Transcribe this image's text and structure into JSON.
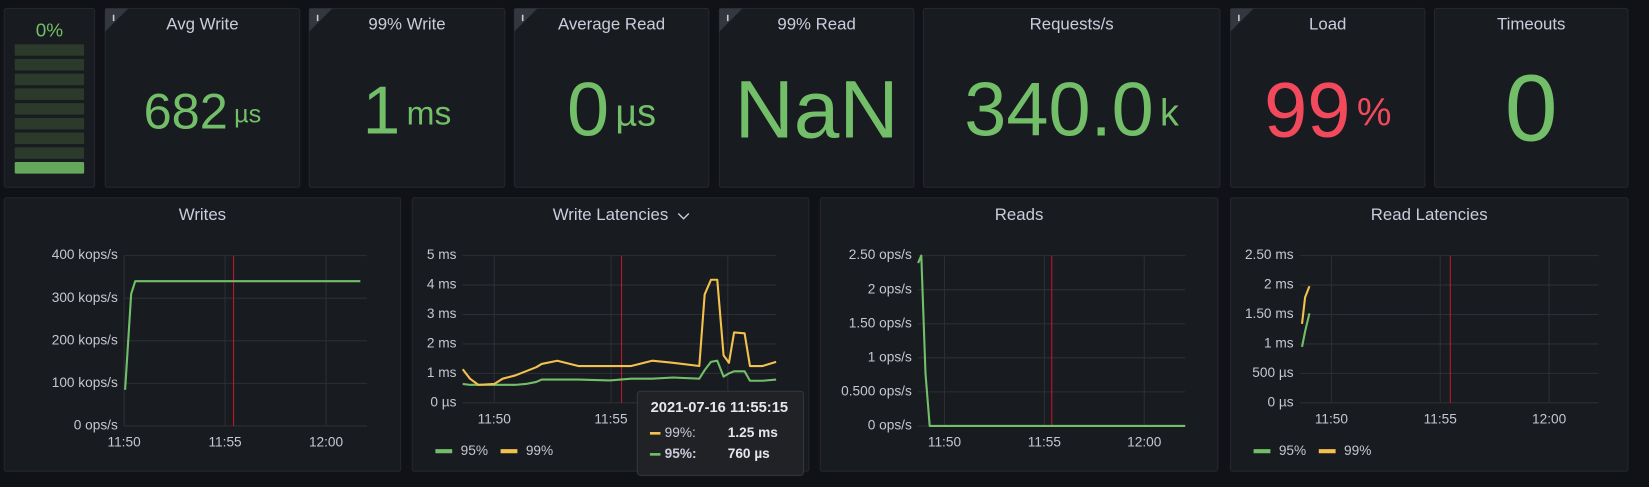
{
  "gauge": {
    "value": "0%"
  },
  "stats": [
    {
      "title": "Avg Write",
      "value": "682",
      "unit": "µs",
      "color": "#73bf69"
    },
    {
      "title": "99% Write",
      "value": "1",
      "unit": "ms",
      "color": "#73bf69"
    },
    {
      "title": "Average Read",
      "value": "0",
      "unit": "µs",
      "color": "#73bf69"
    },
    {
      "title": "99% Read",
      "value": "NaN",
      "color": "#73bf69"
    },
    {
      "title": "Requests/s",
      "value": "340.0",
      "unit": "k",
      "color": "#73bf69"
    },
    {
      "title": "Load",
      "value": "99",
      "unit": "%",
      "color": "#f2495c"
    },
    {
      "title": "Timeouts",
      "value": "0",
      "color": "#73bf69"
    }
  ],
  "chart_data": [
    {
      "type": "line",
      "title": "Writes",
      "x": [
        710.05,
        710.35,
        710.55,
        721.7
      ],
      "series": [
        {
          "color": "#73bf69",
          "values": [
            85000,
            310000,
            340000,
            340000
          ]
        }
      ],
      "xlim": [
        710,
        722.03
      ],
      "xticks": [
        {
          "value": 710,
          "label": "11:50"
        },
        {
          "value": 715,
          "label": "11:55"
        },
        {
          "value": 720,
          "label": "12:00"
        }
      ],
      "ylim": [
        0,
        400000
      ],
      "yticks": [
        {
          "value": 0,
          "label": "0 ops/s"
        },
        {
          "value": 100000,
          "label": "100 kops/s"
        },
        {
          "value": 200000,
          "label": "200 kops/s"
        },
        {
          "value": 300000,
          "label": "300 kops/s"
        },
        {
          "value": 400000,
          "label": "400 kops/s"
        }
      ],
      "marker_x": 715.42,
      "marker_color": "#c4162a",
      "grid": true,
      "legend": false
    },
    {
      "type": "line",
      "title": "Write Latencies",
      "x": [
        708.65,
        708.96,
        709.32,
        710,
        710.36,
        710.9,
        711.35,
        711.8,
        712.03,
        712.7,
        713.6,
        714.95,
        715.86,
        716.76,
        717.66,
        718.78,
        719.01,
        719.28,
        719.55,
        719.82,
        720.05,
        720.27,
        720.72,
        720.95,
        721.49,
        722.07
      ],
      "series": [
        {
          "name": "95%",
          "color": "#73bf69",
          "values": [
            0.64,
            0.61,
            0.61,
            0.61,
            0.61,
            0.61,
            0.64,
            0.71,
            0.79,
            0.79,
            0.79,
            0.76,
            0.82,
            0.82,
            0.86,
            0.82,
            1.11,
            1.39,
            1.43,
            0.89,
            1.0,
            1.07,
            1.07,
            0.75,
            0.75,
            0.79
          ]
        },
        {
          "name": "99%",
          "color": "#f2c14e",
          "values": [
            1.14,
            0.82,
            0.61,
            0.64,
            0.82,
            0.93,
            1.07,
            1.21,
            1.32,
            1.43,
            1.25,
            1.25,
            1.25,
            1.43,
            1.36,
            1.25,
            3.68,
            4.18,
            4.18,
            1.61,
            1.36,
            2.39,
            2.36,
            1.25,
            1.25,
            1.39
          ]
        }
      ],
      "xlim": [
        708.65,
        722.07
      ],
      "xticks": [
        {
          "value": 710,
          "label": "11:50"
        },
        {
          "value": 715,
          "label": "11:55"
        },
        {
          "value": 720,
          "label": "12:00"
        }
      ],
      "ylim": [
        0,
        5
      ],
      "yticks": [
        {
          "value": 0,
          "label": "0 µs"
        },
        {
          "value": 1,
          "label": "1 ms"
        },
        {
          "value": 2,
          "label": "2 ms"
        },
        {
          "value": 3,
          "label": "3 ms"
        },
        {
          "value": 4,
          "label": "4 ms"
        },
        {
          "value": 5,
          "label": "5 ms"
        }
      ],
      "marker_x": 715.45,
      "marker_color": "#c4162a",
      "grid": true,
      "legend": true
    },
    {
      "type": "line",
      "title": "Reads",
      "x": [
        708.68,
        708.84,
        709.05,
        709.26,
        722.05
      ],
      "series": [
        {
          "color": "#73bf69",
          "values": [
            2.39,
            2.5,
            0.77,
            0,
            0
          ]
        }
      ],
      "xlim": [
        708.68,
        722.05
      ],
      "xticks": [
        {
          "value": 710,
          "label": "11:50"
        },
        {
          "value": 715,
          "label": "11:55"
        },
        {
          "value": 720,
          "label": "12:00"
        }
      ],
      "ylim": [
        0,
        2.5
      ],
      "yticks": [
        {
          "value": 0,
          "label": "0 ops/s"
        },
        {
          "value": 0.5,
          "label": "0.500 ops/s"
        },
        {
          "value": 1,
          "label": "1 ops/s"
        },
        {
          "value": 1.5,
          "label": "1.50 ops/s"
        },
        {
          "value": 2,
          "label": "2 ops/s"
        },
        {
          "value": 2.5,
          "label": "2.50 ops/s"
        }
      ],
      "marker_x": 715.37,
      "marker_color": "#c4162a",
      "grid": true,
      "legend": false
    },
    {
      "type": "line",
      "title": "Read Latencies",
      "x": [
        708.65,
        708.79,
        708.99
      ],
      "series": [
        {
          "name": "95%",
          "color": "#73bf69",
          "values": [
            0.95,
            1.21,
            1.52
          ]
        },
        {
          "name": "99%",
          "color": "#f2c14e",
          "values": [
            1.34,
            1.79,
            1.98
          ]
        }
      ],
      "xlim": [
        708.55,
        722.27
      ],
      "xticks": [
        {
          "value": 710,
          "label": "11:50"
        },
        {
          "value": 715,
          "label": "11:55"
        },
        {
          "value": 720,
          "label": "12:00"
        }
      ],
      "ylim": [
        0,
        2.5
      ],
      "yticks": [
        {
          "value": 0,
          "label": "0 µs"
        },
        {
          "value": 0.5,
          "label": "500 µs"
        },
        {
          "value": 1,
          "label": "1 ms"
        },
        {
          "value": 1.5,
          "label": "1.50 ms"
        },
        {
          "value": 2,
          "label": "2 ms"
        },
        {
          "value": 2.5,
          "label": "2.50 ms"
        }
      ],
      "marker_x": 715.46,
      "marker_color": "#c4162a",
      "grid": true,
      "legend": true
    }
  ],
  "tooltip": {
    "time": "2021-07-16 11:55:15",
    "rows": [
      {
        "name": "99%:",
        "value": "1.25 ms",
        "color": "#f2c14e"
      },
      {
        "name": "95%:",
        "value": "760 µs",
        "color": "#73bf69"
      }
    ]
  }
}
